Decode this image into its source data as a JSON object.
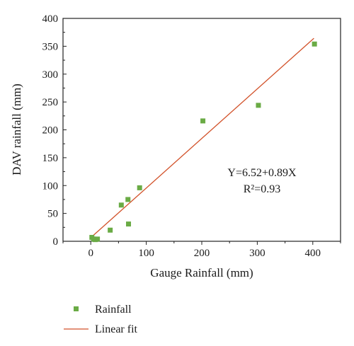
{
  "chart_data": {
    "type": "scatter",
    "xlabel": "Gauge Rainfall (mm)",
    "ylabel": "DAV rainfall (mm)",
    "xlim": [
      -50,
      450
    ],
    "ylim": [
      0,
      400
    ],
    "x_ticks": [
      0,
      100,
      200,
      300,
      400
    ],
    "y_ticks": [
      0,
      50,
      100,
      150,
      200,
      250,
      300,
      350,
      400
    ],
    "grid": false,
    "legend_placement": "bottom-left, below plot",
    "series": [
      {
        "name": "Rainfall",
        "kind": "scatter",
        "color": "#6aab45",
        "points": [
          {
            "x": 2,
            "y": 7
          },
          {
            "x": 5,
            "y": 4
          },
          {
            "x": 8,
            "y": 3
          },
          {
            "x": 12,
            "y": 4
          },
          {
            "x": 35,
            "y": 20
          },
          {
            "x": 55,
            "y": 65
          },
          {
            "x": 67,
            "y": 75
          },
          {
            "x": 68,
            "y": 31
          },
          {
            "x": 88,
            "y": 96
          },
          {
            "x": 202,
            "y": 216
          },
          {
            "x": 302,
            "y": 244
          },
          {
            "x": 403,
            "y": 354
          }
        ]
      },
      {
        "name": "Linear fit",
        "kind": "line",
        "color": "#d2522a",
        "intercept": 6.52,
        "slope": 0.89,
        "x_range": [
          0,
          402
        ]
      }
    ],
    "annotations": [
      "Y=6.52+0.89X",
      "R²=0.93"
    ]
  }
}
